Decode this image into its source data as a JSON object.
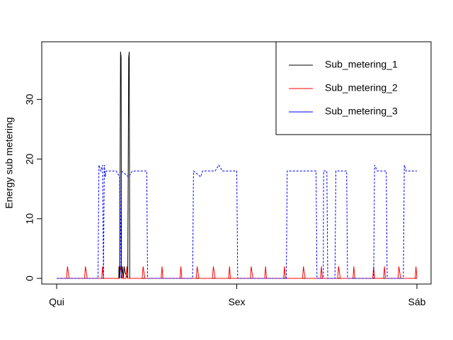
{
  "chart_data": {
    "type": "line",
    "title": "",
    "xlabel": "",
    "ylabel": "Energy sub metering",
    "x_ticks": [
      {
        "label": "Qui",
        "pos": 0
      },
      {
        "label": "Sex",
        "pos": 1
      },
      {
        "label": "Sáb",
        "pos": 2
      }
    ],
    "xlim": [
      0,
      2
    ],
    "ylim": [
      0,
      38
    ],
    "y_ticks": [
      0,
      10,
      20,
      30
    ],
    "legend_position": "top-right",
    "series": [
      {
        "name": "Sub_metering_1",
        "color": "#000000",
        "dash": "solid",
        "points": [
          [
            0.0,
            0
          ],
          [
            0.345,
            0
          ],
          [
            0.346,
            2
          ],
          [
            0.35,
            0
          ],
          [
            0.355,
            38
          ],
          [
            0.358,
            37
          ],
          [
            0.36,
            0
          ],
          [
            0.365,
            2
          ],
          [
            0.37,
            0
          ],
          [
            0.375,
            2
          ],
          [
            0.38,
            1
          ],
          [
            0.395,
            0
          ],
          [
            0.4,
            37
          ],
          [
            0.403,
            38
          ],
          [
            0.406,
            0
          ],
          [
            2.0,
            0
          ]
        ]
      },
      {
        "name": "Sub_metering_2",
        "color": "#ff0000",
        "dash": "solid",
        "points": [
          [
            0.0,
            0
          ],
          [
            0.055,
            0
          ],
          [
            0.06,
            2
          ],
          [
            0.065,
            1
          ],
          [
            0.07,
            0
          ],
          [
            0.155,
            0
          ],
          [
            0.16,
            2
          ],
          [
            0.165,
            1
          ],
          [
            0.17,
            0
          ],
          [
            0.25,
            0
          ],
          [
            0.255,
            2
          ],
          [
            0.26,
            0
          ],
          [
            0.35,
            0
          ],
          [
            0.355,
            2
          ],
          [
            0.36,
            1
          ],
          [
            0.365,
            0
          ],
          [
            0.385,
            0
          ],
          [
            0.39,
            2
          ],
          [
            0.395,
            0
          ],
          [
            0.475,
            0
          ],
          [
            0.48,
            2
          ],
          [
            0.485,
            1
          ],
          [
            0.49,
            0
          ],
          [
            0.58,
            0
          ],
          [
            0.585,
            2
          ],
          [
            0.59,
            0
          ],
          [
            0.685,
            0
          ],
          [
            0.69,
            2
          ],
          [
            0.695,
            0
          ],
          [
            0.775,
            0
          ],
          [
            0.78,
            2
          ],
          [
            0.785,
            1
          ],
          [
            0.79,
            0
          ],
          [
            0.865,
            0
          ],
          [
            0.87,
            2
          ],
          [
            0.875,
            1
          ],
          [
            0.88,
            0
          ],
          [
            0.955,
            0
          ],
          [
            0.96,
            2
          ],
          [
            0.965,
            0
          ],
          [
            1.075,
            0
          ],
          [
            1.08,
            2
          ],
          [
            1.085,
            1
          ],
          [
            1.09,
            0
          ],
          [
            1.155,
            0
          ],
          [
            1.16,
            2
          ],
          [
            1.165,
            0
          ],
          [
            1.26,
            0
          ],
          [
            1.265,
            2
          ],
          [
            1.27,
            0
          ],
          [
            1.365,
            0
          ],
          [
            1.37,
            2
          ],
          [
            1.375,
            1
          ],
          [
            1.38,
            0
          ],
          [
            1.465,
            0
          ],
          [
            1.47,
            2
          ],
          [
            1.475,
            0
          ],
          [
            1.56,
            0
          ],
          [
            1.565,
            2
          ],
          [
            1.57,
            1
          ],
          [
            1.575,
            0
          ],
          [
            1.645,
            0
          ],
          [
            1.65,
            2
          ],
          [
            1.655,
            0
          ],
          [
            1.755,
            0
          ],
          [
            1.76,
            2
          ],
          [
            1.765,
            0
          ],
          [
            1.815,
            0
          ],
          [
            1.82,
            2
          ],
          [
            1.825,
            0
          ],
          [
            1.895,
            0
          ],
          [
            1.9,
            2
          ],
          [
            1.905,
            1
          ],
          [
            1.91,
            0
          ],
          [
            1.99,
            0
          ],
          [
            1.995,
            2
          ],
          [
            2.0,
            0
          ]
        ]
      },
      {
        "name": "Sub_metering_3",
        "color": "#0000ff",
        "dash": "dashed",
        "points": [
          [
            0.0,
            0
          ],
          [
            0.23,
            0
          ],
          [
            0.235,
            19
          ],
          [
            0.245,
            18
          ],
          [
            0.255,
            19
          ],
          [
            0.26,
            0
          ],
          [
            0.265,
            19
          ],
          [
            0.27,
            17
          ],
          [
            0.275,
            18
          ],
          [
            0.33,
            18
          ],
          [
            0.35,
            17
          ],
          [
            0.352,
            0
          ],
          [
            0.36,
            18
          ],
          [
            0.4,
            17
          ],
          [
            0.42,
            18
          ],
          [
            0.5,
            18
          ],
          [
            0.505,
            0
          ],
          [
            0.755,
            0
          ],
          [
            0.76,
            18
          ],
          [
            0.8,
            17
          ],
          [
            0.81,
            18
          ],
          [
            0.88,
            18
          ],
          [
            0.9,
            19
          ],
          [
            0.92,
            18
          ],
          [
            1.0,
            18
          ],
          [
            1.005,
            0
          ],
          [
            1.275,
            0
          ],
          [
            1.28,
            18
          ],
          [
            1.44,
            18
          ],
          [
            1.445,
            0
          ],
          [
            1.48,
            0
          ],
          [
            1.482,
            18
          ],
          [
            1.5,
            18
          ],
          [
            1.505,
            0
          ],
          [
            1.545,
            0
          ],
          [
            1.55,
            18
          ],
          [
            1.61,
            18
          ],
          [
            1.615,
            0
          ],
          [
            1.76,
            0
          ],
          [
            1.765,
            19
          ],
          [
            1.78,
            18
          ],
          [
            1.83,
            18
          ],
          [
            1.835,
            0
          ],
          [
            1.925,
            0
          ],
          [
            1.93,
            19
          ],
          [
            1.94,
            18
          ],
          [
            2.0,
            18
          ]
        ]
      }
    ]
  }
}
